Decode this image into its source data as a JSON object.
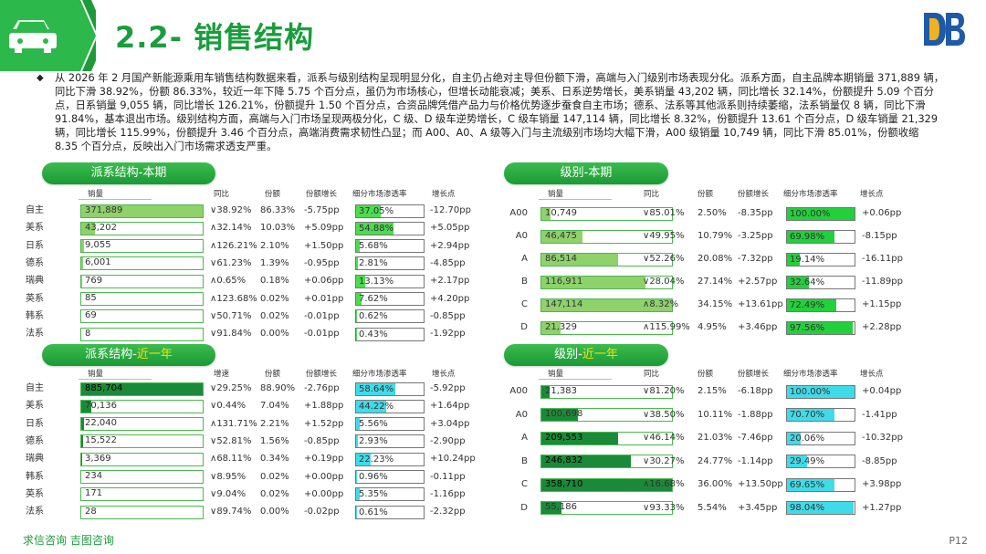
{
  "header": {
    "title": "2.2- 销售结构",
    "icon": "car-icon",
    "corner_logo": "brand-logo"
  },
  "intro": "从 2026 年 2 月国产新能源乘用车销售结构数据来看，派系与级别结构呈现明显分化，自主仍占绝对主导但份额下滑，高端与入门级别市场表现分化。派系方面，自主品牌本期销量 371,889 辆，同比下滑 38.92%，份额 86.33%，较近一年下降 5.75 个百分点，虽仍为市场核心，但增长动能衰减；美系、日系逆势增长，美系销量 43,202 辆，同比增长 32.14%，份额提升 5.09 个百分点，日系销量 9,055 辆，同比增长 126.21%，份额提升 1.50 个百分点，合资品牌凭借产品力与价格优势逐步蚕食自主市场；德系、法系等其他派系则持续萎缩，法系销量仅 8 辆，同比下滑 91.84%，基本退出市场。级别结构方面，高端与入门市场呈现两极分化，C 级、D 级车逆势增长，C 级车销量 147,114 辆，同比增长 8.32%，份额提升 13.61 个百分点，D 级车销量 21,329 辆，同比增长 115.99%，份额提升 3.46 个百分点，高端消费需求韧性凸显；而 A00、A0、A 级等入门与主流级别市场均大幅下滑，A00 级销量 10,749 辆，同比下滑 85.01%，份额收缩 8.35 个百分点，反映出入门市场需求透支严重。",
  "panels": [
    {
      "id": "faction-current",
      "title": "派系结构-本期",
      "title_highlight": "",
      "headers": [
        "销量",
        "同比",
        "份额",
        "份额增长",
        "细分市场渗透率",
        "增长点"
      ],
      "sales_fill": "#8fd16a",
      "pen_fill": "#4cdc4f",
      "max": 371889,
      "rows": [
        {
          "label": "自主",
          "sales": "371,889",
          "sales_v": 371889,
          "yoy": "∨38.92%",
          "share": "86.33%",
          "share_chg": "-5.75pp",
          "pen": "37.05%",
          "pen_v": 37.05,
          "growth": "-12.70pp"
        },
        {
          "label": "美系",
          "sales": "43,202",
          "sales_v": 43202,
          "yoy": "∧32.14%",
          "share": "10.03%",
          "share_chg": "+5.09pp",
          "pen": "54.88%",
          "pen_v": 54.88,
          "growth": "+5.05pp"
        },
        {
          "label": "日系",
          "sales": "9,055",
          "sales_v": 9055,
          "yoy": "∧126.21%",
          "share": "2.10%",
          "share_chg": "+1.50pp",
          "pen": "5.68%",
          "pen_v": 5.68,
          "growth": "+2.94pp"
        },
        {
          "label": "德系",
          "sales": "6,001",
          "sales_v": 6001,
          "yoy": "∨61.23%",
          "share": "1.39%",
          "share_chg": "-0.95pp",
          "pen": "2.81%",
          "pen_v": 2.81,
          "growth": "-4.85pp"
        },
        {
          "label": "瑞典",
          "sales": "769",
          "sales_v": 769,
          "yoy": "∧0.65%",
          "share": "0.18%",
          "share_chg": "+0.06pp",
          "pen": "13.13%",
          "pen_v": 13.13,
          "growth": "+2.17pp"
        },
        {
          "label": "英系",
          "sales": "85",
          "sales_v": 85,
          "yoy": "∧123.68%",
          "share": "0.02%",
          "share_chg": "+0.01pp",
          "pen": "7.62%",
          "pen_v": 7.62,
          "growth": "+4.20pp"
        },
        {
          "label": "韩系",
          "sales": "69",
          "sales_v": 69,
          "yoy": "∨50.71%",
          "share": "0.02%",
          "share_chg": "-0.01pp",
          "pen": "0.62%",
          "pen_v": 0.62,
          "growth": "-0.85pp"
        },
        {
          "label": "法系",
          "sales": "8",
          "sales_v": 8,
          "yoy": "∨91.84%",
          "share": "0.00%",
          "share_chg": "-0.01pp",
          "pen": "0.43%",
          "pen_v": 0.43,
          "growth": "-1.92pp"
        }
      ]
    },
    {
      "id": "level-current",
      "title": "级别-本期",
      "title_highlight": "",
      "headers": [
        "销量",
        "同比",
        "份额",
        "份额增长",
        "细分市场渗透率",
        "增长点"
      ],
      "sales_fill": "#8fd16a",
      "pen_fill": "#22d03c",
      "max": 147114,
      "rows": [
        {
          "label": "A00",
          "sales": "10,749",
          "sales_v": 10749,
          "yoy": "∨85.01%",
          "share": "2.50%",
          "share_chg": "-8.35pp",
          "pen": "100.00%",
          "pen_v": 100,
          "growth": "+0.06pp"
        },
        {
          "label": "A0",
          "sales": "46,475",
          "sales_v": 46475,
          "yoy": "∨49.95%",
          "share": "10.79%",
          "share_chg": "-3.25pp",
          "pen": "69.98%",
          "pen_v": 69.98,
          "growth": "-8.15pp"
        },
        {
          "label": "A",
          "sales": "86,514",
          "sales_v": 86514,
          "yoy": "∨52.26%",
          "share": "20.08%",
          "share_chg": "-7.32pp",
          "pen": "19.14%",
          "pen_v": 19.14,
          "growth": "-16.11pp"
        },
        {
          "label": "B",
          "sales": "116,911",
          "sales_v": 116911,
          "yoy": "∨28.04%",
          "share": "27.14%",
          "share_chg": "+2.57pp",
          "pen": "32.64%",
          "pen_v": 32.64,
          "growth": "-11.89pp"
        },
        {
          "label": "C",
          "sales": "147,114",
          "sales_v": 147114,
          "yoy": "∧8.32%",
          "share": "34.15%",
          "share_chg": "+13.61pp",
          "pen": "72.49%",
          "pen_v": 72.49,
          "growth": "+1.15pp"
        },
        {
          "label": "D",
          "sales": "21,329",
          "sales_v": 21329,
          "yoy": "∧115.99%",
          "share": "4.95%",
          "share_chg": "+3.46pp",
          "pen": "97.56%",
          "pen_v": 97.56,
          "growth": "+2.28pp"
        }
      ]
    },
    {
      "id": "faction-year",
      "title": "派系结构-",
      "title_highlight": "近一年",
      "headers": [
        "销量",
        "增速",
        "份额",
        "份额增长",
        "细分市场渗透率",
        "增长点"
      ],
      "sales_fill": "#1a8a3a",
      "pen_fill": "#40dbe8",
      "max": 885704,
      "rows": [
        {
          "label": "自主",
          "sales": "885,704",
          "sales_v": 885704,
          "yoy": "∨29.25%",
          "share": "88.90%",
          "share_chg": "-2.76pp",
          "pen": "58.64%",
          "pen_v": 58.64,
          "growth": "-5.92pp"
        },
        {
          "label": "美系",
          "sales": "70,136",
          "sales_v": 70136,
          "yoy": "∨0.44%",
          "share": "7.04%",
          "share_chg": "+1.88pp",
          "pen": "44.22%",
          "pen_v": 44.22,
          "growth": "+1.64pp"
        },
        {
          "label": "日系",
          "sales": "22,040",
          "sales_v": 22040,
          "yoy": "∧131.71%",
          "share": "2.21%",
          "share_chg": "+1.52pp",
          "pen": "5.56%",
          "pen_v": 5.56,
          "growth": "+3.04pp"
        },
        {
          "label": "德系",
          "sales": "15,522",
          "sales_v": 15522,
          "yoy": "∨52.81%",
          "share": "1.56%",
          "share_chg": "-0.85pp",
          "pen": "2.93%",
          "pen_v": 2.93,
          "growth": "-2.90pp"
        },
        {
          "label": "瑞典",
          "sales": "3,369",
          "sales_v": 3369,
          "yoy": "∧68.11%",
          "share": "0.34%",
          "share_chg": "+0.19pp",
          "pen": "22.23%",
          "pen_v": 22.23,
          "growth": "+10.24pp"
        },
        {
          "label": "韩系",
          "sales": "234",
          "sales_v": 234,
          "yoy": "∨8.95%",
          "share": "0.02%",
          "share_chg": "+0.00pp",
          "pen": "0.96%",
          "pen_v": 0.96,
          "growth": "-0.11pp"
        },
        {
          "label": "英系",
          "sales": "171",
          "sales_v": 171,
          "yoy": "∨9.04%",
          "share": "0.02%",
          "share_chg": "+0.00pp",
          "pen": "5.35%",
          "pen_v": 5.35,
          "growth": "-1.16pp"
        },
        {
          "label": "法系",
          "sales": "28",
          "sales_v": 28,
          "yoy": "∨89.74%",
          "share": "0.00%",
          "share_chg": "-0.02pp",
          "pen": "0.61%",
          "pen_v": 0.61,
          "growth": "-2.32pp"
        }
      ]
    },
    {
      "id": "level-year",
      "title": "级别-",
      "title_highlight": "近一年",
      "headers": [
        "销量",
        "同比",
        "份额",
        "份额增长",
        "细分市场渗透率",
        "增长点"
      ],
      "sales_fill": "#1a8a3a",
      "pen_fill": "#40dbe8",
      "max": 358710,
      "rows": [
        {
          "label": "A00",
          "sales": "21,383",
          "sales_v": 21383,
          "yoy": "∨81.20%",
          "share": "2.15%",
          "share_chg": "-6.18pp",
          "pen": "100.00%",
          "pen_v": 100,
          "growth": "+0.04pp"
        },
        {
          "label": "A0",
          "sales": "100,698",
          "sales_v": 100698,
          "yoy": "∨38.50%",
          "share": "10.11%",
          "share_chg": "-1.88pp",
          "pen": "70.70%",
          "pen_v": 70.7,
          "growth": "-1.41pp"
        },
        {
          "label": "A",
          "sales": "209,553",
          "sales_v": 209553,
          "yoy": "∨46.14%",
          "share": "21.03%",
          "share_chg": "-7.46pp",
          "pen": "20.06%",
          "pen_v": 20.06,
          "growth": "-10.32pp"
        },
        {
          "label": "B",
          "sales": "246,832",
          "sales_v": 246832,
          "yoy": "∨30.27%",
          "share": "24.77%",
          "share_chg": "-1.14pp",
          "pen": "29.49%",
          "pen_v": 29.49,
          "growth": "-8.85pp"
        },
        {
          "label": "C",
          "sales": "358,710",
          "sales_v": 358710,
          "yoy": "∧16.68%",
          "share": "36.00%",
          "share_chg": "+13.50pp",
          "pen": "69.65%",
          "pen_v": 69.65,
          "growth": "+3.98pp"
        },
        {
          "label": "D",
          "sales": "55,186",
          "sales_v": 55186,
          "yoy": "∨93.33%",
          "share": "5.54%",
          "share_chg": "+3.45pp",
          "pen": "98.04%",
          "pen_v": 98.04,
          "growth": "+1.27pp"
        }
      ]
    }
  ],
  "footer": {
    "source": "求信咨询 吉图咨询",
    "page": "P12"
  }
}
